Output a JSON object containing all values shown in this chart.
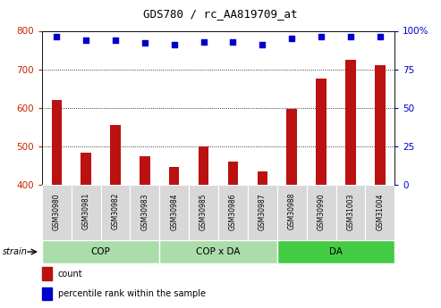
{
  "title": "GDS780 / rc_AA819709_at",
  "samples": [
    "GSM30980",
    "GSM30981",
    "GSM30982",
    "GSM30983",
    "GSM30984",
    "GSM30985",
    "GSM30986",
    "GSM30987",
    "GSM30988",
    "GSM30990",
    "GSM31003",
    "GSM31004"
  ],
  "counts": [
    620,
    484,
    556,
    474,
    447,
    500,
    460,
    435,
    598,
    676,
    724,
    710
  ],
  "percentiles": [
    96,
    94,
    94,
    92,
    91,
    93,
    93,
    91,
    95,
    96,
    96,
    96
  ],
  "bar_color": "#bb1111",
  "dot_color": "#0000cc",
  "ylim_left": [
    400,
    800
  ],
  "ylim_right": [
    0,
    100
  ],
  "yticks_left": [
    400,
    500,
    600,
    700,
    800
  ],
  "yticks_right": [
    0,
    25,
    50,
    75,
    100
  ],
  "group_defs": [
    {
      "label": "COP",
      "indices": [
        0,
        1,
        2,
        3
      ],
      "color": "#aaddaa"
    },
    {
      "label": "COP x DA",
      "indices": [
        4,
        5,
        6,
        7
      ],
      "color": "#aaddaa"
    },
    {
      "label": "DA",
      "indices": [
        8,
        9,
        10,
        11
      ],
      "color": "#44cc44"
    }
  ],
  "sample_bg_color": "#d8d8d8",
  "strain_label": "strain"
}
